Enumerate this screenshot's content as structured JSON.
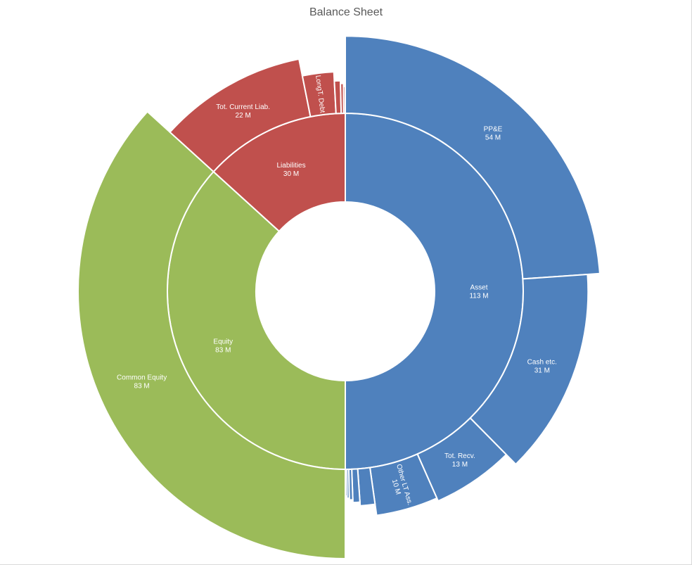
{
  "chart_data": {
    "type": "sunburst",
    "title": "Balance Sheet",
    "unit": "M",
    "nodes": [
      {
        "name": "Asset",
        "value": 113,
        "label": "113 M",
        "color": "#4f81bd",
        "children": [
          {
            "name": "PP&E",
            "value": 54,
            "label": "54 M"
          },
          {
            "name": "Cash etc.",
            "value": 31,
            "label": "31 M"
          },
          {
            "name": "Tot. Recv.",
            "value": 13,
            "label": "13 M"
          },
          {
            "name": "Other LT Ass.",
            "value": 10,
            "label": "10 M"
          },
          {
            "name": "",
            "value": 2.5,
            "label": ""
          },
          {
            "name": "",
            "value": 1.2,
            "label": ""
          },
          {
            "name": "",
            "value": 0.6,
            "label": ""
          },
          {
            "name": "",
            "value": 0.4,
            "label": ""
          },
          {
            "name": "",
            "value": 0.3,
            "label": ""
          }
        ]
      },
      {
        "name": "Equity",
        "value": 83,
        "label": "83 M",
        "color": "#9bbb59",
        "children": [
          {
            "name": "Common Equity",
            "value": 83,
            "label": "83 M"
          }
        ]
      },
      {
        "name": "Liabilities",
        "value": 30,
        "label": "30 M",
        "color": "#c0504d",
        "children": [
          {
            "name": "Tot. Current Liab.",
            "value": 22,
            "label": "22 M"
          },
          {
            "name": "LongT. Debt",
            "value": 5,
            "label": ""
          },
          {
            "name": "",
            "value": 1,
            "label": ""
          },
          {
            "name": "",
            "value": 0.5,
            "label": ""
          },
          {
            "name": "",
            "value": 0.3,
            "label": ""
          }
        ]
      }
    ]
  }
}
